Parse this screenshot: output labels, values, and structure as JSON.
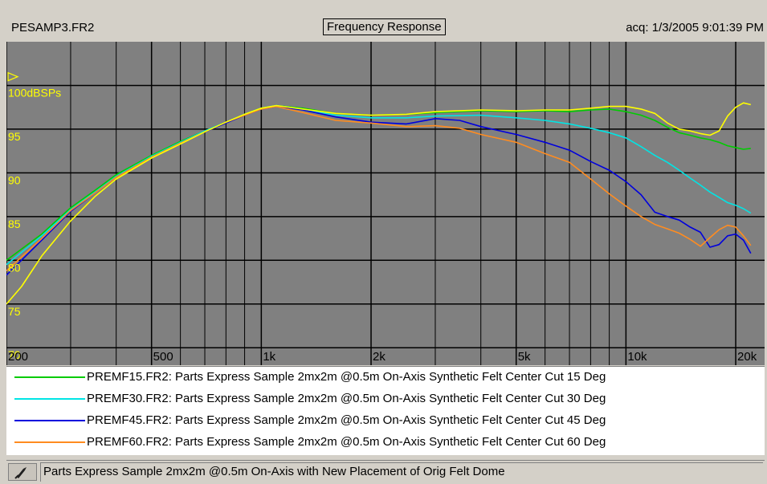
{
  "header": {
    "file_name": "PESAMP3.FR2",
    "title": "Frequency Response",
    "acquired": "acq: 1/3/2005 9:01:39 PM"
  },
  "colors": {
    "plot_background": "#808080",
    "grid": "#000000",
    "tick_labels": "#ffff00"
  },
  "chart_data": {
    "type": "line",
    "title": "Frequency Response",
    "x_scale": "log",
    "xlim": [
      200,
      24000
    ],
    "ylim": [
      68,
      105
    ],
    "x_ticks": [
      {
        "value": 200,
        "label": "200"
      },
      {
        "value": 500,
        "label": "500"
      },
      {
        "value": 1000,
        "label": "1k"
      },
      {
        "value": 2000,
        "label": "2k"
      },
      {
        "value": 5000,
        "label": "5k"
      },
      {
        "value": 10000,
        "label": "10k"
      },
      {
        "value": 20000,
        "label": "20k"
      }
    ],
    "x_minor_grid": [
      300,
      400,
      500,
      600,
      700,
      800,
      900,
      3000,
      4000,
      6000,
      7000,
      8000,
      9000
    ],
    "y_ticks": [
      {
        "value": 100,
        "label": "100dBSPs"
      },
      {
        "value": 95,
        "label": "95"
      },
      {
        "value": 90,
        "label": "90"
      },
      {
        "value": 85,
        "label": "85"
      },
      {
        "value": 80,
        "label": "80"
      },
      {
        "value": 75,
        "label": "75"
      },
      {
        "value": 70,
        "label": "70"
      }
    ],
    "reference_marker_value": 101,
    "grid": true,
    "legend_position": "below",
    "series": [
      {
        "name": "PREMF15.FR2:  Parts Express Sample 2mx2m @0.5m On-Axis Synthetic Felt Center Cut 15 Deg",
        "color": "#00cc00",
        "points": [
          [
            200,
            80
          ],
          [
            250,
            83
          ],
          [
            300,
            86
          ],
          [
            350,
            88
          ],
          [
            400,
            89.8
          ],
          [
            500,
            92
          ],
          [
            600,
            93.6
          ],
          [
            700,
            94.8
          ],
          [
            800,
            95.8
          ],
          [
            900,
            96.7
          ],
          [
            1000,
            97.4
          ],
          [
            1100,
            97.7
          ],
          [
            1300,
            97.4
          ],
          [
            1600,
            96.8
          ],
          [
            2000,
            96.6
          ],
          [
            2500,
            96.7
          ],
          [
            3000,
            96.9
          ],
          [
            4000,
            97.1
          ],
          [
            5000,
            97.0
          ],
          [
            6000,
            97.1
          ],
          [
            7000,
            97.0
          ],
          [
            8000,
            97.2
          ],
          [
            9000,
            97.3
          ],
          [
            10000,
            97.0
          ],
          [
            11000,
            96.6
          ],
          [
            12000,
            96.0
          ],
          [
            13000,
            95.2
          ],
          [
            14000,
            94.6
          ],
          [
            15000,
            94.3
          ],
          [
            16000,
            94.0
          ],
          [
            17000,
            93.8
          ],
          [
            18000,
            93.5
          ],
          [
            19000,
            93.1
          ],
          [
            20000,
            92.9
          ],
          [
            21000,
            92.7
          ],
          [
            22000,
            92.8
          ]
        ]
      },
      {
        "name": "PREMF30.FR2:  Parts Express Sample 2mx2m @0.5m On-Axis Synthetic Felt Center Cut 30 Deg",
        "color": "#00e5e5",
        "points": [
          [
            200,
            79.5
          ],
          [
            250,
            82.8
          ],
          [
            300,
            85.8
          ],
          [
            350,
            87.8
          ],
          [
            400,
            89.6
          ],
          [
            500,
            91.9
          ],
          [
            600,
            93.5
          ],
          [
            700,
            94.8
          ],
          [
            800,
            95.8
          ],
          [
            900,
            96.7
          ],
          [
            1000,
            97.4
          ],
          [
            1100,
            97.7
          ],
          [
            1300,
            97.3
          ],
          [
            1600,
            96.6
          ],
          [
            2000,
            96.3
          ],
          [
            2500,
            96.3
          ],
          [
            3000,
            96.5
          ],
          [
            4000,
            96.6
          ],
          [
            5000,
            96.3
          ],
          [
            6000,
            96.0
          ],
          [
            7000,
            95.6
          ],
          [
            8000,
            95.1
          ],
          [
            9000,
            94.6
          ],
          [
            10000,
            94.0
          ],
          [
            11000,
            93.0
          ],
          [
            12000,
            92.0
          ],
          [
            13000,
            91.2
          ],
          [
            14000,
            90.3
          ],
          [
            15000,
            89.4
          ],
          [
            16000,
            88.6
          ],
          [
            17000,
            87.8
          ],
          [
            18000,
            87.2
          ],
          [
            19000,
            86.6
          ],
          [
            20000,
            86.3
          ],
          [
            21000,
            85.9
          ],
          [
            22000,
            85.4
          ]
        ]
      },
      {
        "name": "PREMF45.FR2:  Parts Express Sample 2mx2m @0.5m On-Axis Synthetic Felt Center Cut 45 Deg",
        "color": "#0000dd",
        "points": [
          [
            200,
            78.3
          ],
          [
            250,
            82.3
          ],
          [
            300,
            85.6
          ],
          [
            350,
            87.7
          ],
          [
            400,
            89.5
          ],
          [
            500,
            91.8
          ],
          [
            600,
            93.4
          ],
          [
            700,
            94.7
          ],
          [
            800,
            95.7
          ],
          [
            900,
            96.6
          ],
          [
            1000,
            97.3
          ],
          [
            1100,
            97.6
          ],
          [
            1300,
            97.2
          ],
          [
            1600,
            96.4
          ],
          [
            2000,
            95.8
          ],
          [
            2500,
            95.6
          ],
          [
            3000,
            96.2
          ],
          [
            3500,
            96.0
          ],
          [
            4000,
            95.3
          ],
          [
            5000,
            94.4
          ],
          [
            6000,
            93.5
          ],
          [
            7000,
            92.6
          ],
          [
            8000,
            91.3
          ],
          [
            9000,
            90.3
          ],
          [
            10000,
            89.0
          ],
          [
            11000,
            87.5
          ],
          [
            12000,
            85.5
          ],
          [
            13000,
            85.0
          ],
          [
            14000,
            84.6
          ],
          [
            15000,
            83.8
          ],
          [
            16000,
            83.2
          ],
          [
            17000,
            81.5
          ],
          [
            18000,
            81.8
          ],
          [
            19000,
            82.8
          ],
          [
            20000,
            83.0
          ],
          [
            21000,
            82.3
          ],
          [
            22000,
            80.8
          ]
        ]
      },
      {
        "name": "PREMF60.FR2:  Parts Express Sample 2mx2m @0.5m On-Axis Synthetic Felt Center Cut 60 Deg",
        "color": "#ff8c20",
        "points": [
          [
            200,
            78.8
          ],
          [
            250,
            82.5
          ],
          [
            300,
            85.7
          ],
          [
            350,
            87.7
          ],
          [
            400,
            89.5
          ],
          [
            500,
            91.8
          ],
          [
            600,
            93.4
          ],
          [
            700,
            94.7
          ],
          [
            800,
            95.8
          ],
          [
            900,
            96.6
          ],
          [
            1000,
            97.3
          ],
          [
            1100,
            97.6
          ],
          [
            1300,
            96.9
          ],
          [
            1600,
            96.0
          ],
          [
            2000,
            95.7
          ],
          [
            2500,
            95.3
          ],
          [
            3000,
            95.4
          ],
          [
            3500,
            95.1
          ],
          [
            4000,
            94.4
          ],
          [
            5000,
            93.5
          ],
          [
            6000,
            92.2
          ],
          [
            7000,
            91.2
          ],
          [
            8000,
            89.3
          ],
          [
            9000,
            87.6
          ],
          [
            10000,
            86.2
          ],
          [
            11000,
            85.0
          ],
          [
            12000,
            84.1
          ],
          [
            13000,
            83.6
          ],
          [
            14000,
            83.1
          ],
          [
            15000,
            82.4
          ],
          [
            16000,
            81.6
          ],
          [
            17000,
            82.6
          ],
          [
            18000,
            83.5
          ],
          [
            19000,
            84.0
          ],
          [
            20000,
            83.8
          ],
          [
            21000,
            82.8
          ],
          [
            22000,
            81.7
          ]
        ]
      },
      {
        "name": "",
        "color": "#ffff00",
        "points": [
          [
            200,
            75
          ],
          [
            220,
            77
          ],
          [
            250,
            80.5
          ],
          [
            300,
            84.5
          ],
          [
            350,
            87.3
          ],
          [
            400,
            89.3
          ],
          [
            500,
            91.7
          ],
          [
            600,
            93.3
          ],
          [
            700,
            94.7
          ],
          [
            800,
            95.8
          ],
          [
            900,
            96.7
          ],
          [
            1000,
            97.4
          ],
          [
            1100,
            97.7
          ],
          [
            1300,
            97.3
          ],
          [
            1600,
            96.8
          ],
          [
            2000,
            96.6
          ],
          [
            2500,
            96.7
          ],
          [
            3000,
            97.0
          ],
          [
            4000,
            97.2
          ],
          [
            5000,
            97.1
          ],
          [
            6000,
            97.2
          ],
          [
            7000,
            97.2
          ],
          [
            8000,
            97.4
          ],
          [
            9000,
            97.6
          ],
          [
            10000,
            97.6
          ],
          [
            11000,
            97.3
          ],
          [
            12000,
            96.8
          ],
          [
            13000,
            95.7
          ],
          [
            14000,
            95.0
          ],
          [
            15000,
            94.8
          ],
          [
            16000,
            94.5
          ],
          [
            17000,
            94.3
          ],
          [
            18000,
            94.8
          ],
          [
            19000,
            96.5
          ],
          [
            20000,
            97.5
          ],
          [
            21000,
            98.0
          ],
          [
            22000,
            97.8
          ]
        ]
      }
    ]
  },
  "status_bar": {
    "text": "Parts Express Sample 2mx2m @0.5m On-Axis with New Placement of Orig Felt Dome",
    "icon": "probe-icon"
  }
}
